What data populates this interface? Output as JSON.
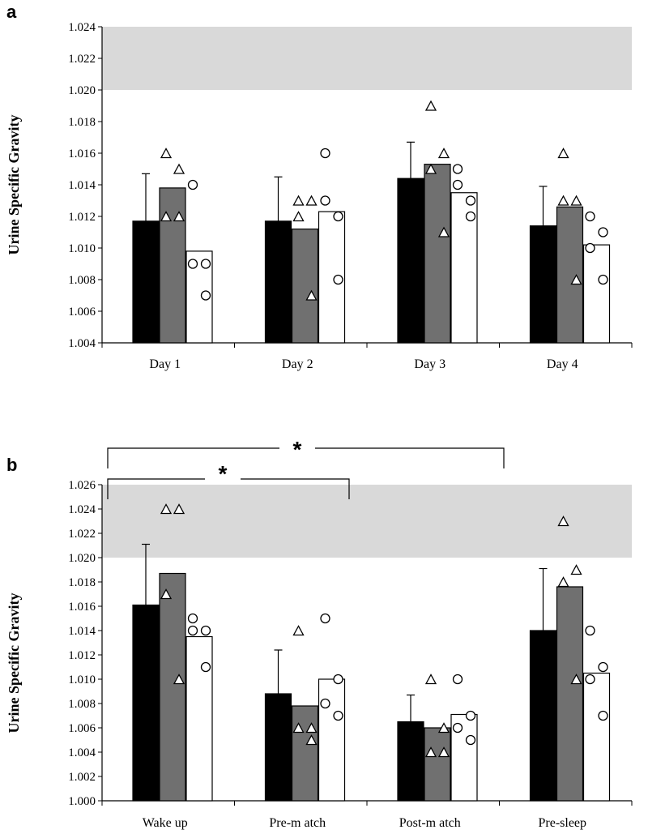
{
  "chart_data": [
    {
      "type": "bar",
      "panel_label": "a",
      "ylabel": "Urine Specific Gravity",
      "ylim": [
        1.004,
        1.024
      ],
      "yticks": [
        "1.004",
        "1.006",
        "1.008",
        "1.010",
        "1.012",
        "1.014",
        "1.016",
        "1.018",
        "1.020",
        "1.022",
        "1.024"
      ],
      "shaded_band": [
        1.02,
        1.024
      ],
      "categories": [
        "Day 1",
        "Day 2",
        "Day 3",
        "Day 4"
      ],
      "series": [
        {
          "name": "black",
          "color": "#000000",
          "values": [
            1.0117,
            1.0117,
            1.0144,
            1.0114
          ],
          "error": [
            1.0147,
            1.0145,
            1.0167,
            1.0139
          ],
          "points": []
        },
        {
          "name": "grey",
          "color": "#707070",
          "marker": "triangle",
          "values": [
            1.0138,
            1.0112,
            1.0153,
            1.0126
          ],
          "error": null,
          "points": [
            [
              1.016,
              1.012,
              1.012,
              1.015
            ],
            [
              1.012,
              1.013,
              1.013,
              1.007
            ],
            [
              1.019,
              1.016,
              1.015,
              1.011
            ],
            [
              1.016,
              1.013,
              1.013,
              1.008
            ]
          ]
        },
        {
          "name": "white",
          "color": "#ffffff",
          "marker": "circle",
          "values": [
            1.0098,
            1.0123,
            1.0135,
            1.0102
          ],
          "error": null,
          "points": [
            [
              1.014,
              1.009,
              1.009,
              1.007
            ],
            [
              1.016,
              1.012,
              1.013,
              1.008
            ],
            [
              1.015,
              1.013,
              1.014,
              1.012
            ],
            [
              1.012,
              1.011,
              1.01,
              1.008
            ]
          ]
        }
      ]
    },
    {
      "type": "bar",
      "panel_label": "b",
      "ylabel": "Urine Specific Gravity",
      "ylim": [
        1.0,
        1.026
      ],
      "yticks": [
        "1.000",
        "1.002",
        "1.004",
        "1.006",
        "1.008",
        "1.010",
        "1.012",
        "1.014",
        "1.016",
        "1.018",
        "1.020",
        "1.022",
        "1.024",
        "1.026"
      ],
      "shaded_band": [
        1.02,
        1.026
      ],
      "categories": [
        "Wake up",
        "Pre-m atch",
        "Post-m atch",
        "Pre-sleep"
      ],
      "series": [
        {
          "name": "black",
          "color": "#000000",
          "values": [
            1.0161,
            1.0088,
            1.0065,
            1.014
          ],
          "error": [
            1.0211,
            1.0124,
            1.0087,
            1.0191
          ],
          "points": []
        },
        {
          "name": "grey",
          "color": "#707070",
          "marker": "triangle",
          "values": [
            1.0187,
            1.0078,
            1.006,
            1.0176
          ],
          "error": null,
          "points": [
            [
              1.024,
              1.024,
              1.017,
              1.01
            ],
            [
              1.014,
              1.006,
              1.006,
              1.005
            ],
            [
              1.01,
              1.006,
              1.004,
              1.004
            ],
            [
              1.023,
              1.019,
              1.018,
              1.01
            ]
          ]
        },
        {
          "name": "white",
          "color": "#ffffff",
          "marker": "circle",
          "values": [
            1.0135,
            1.01,
            1.0071,
            1.0105
          ],
          "error": null,
          "points": [
            [
              1.015,
              1.014,
              1.014,
              1.011
            ],
            [
              1.015,
              1.01,
              1.008,
              1.007
            ],
            [
              1.01,
              1.007,
              1.006,
              1.005
            ],
            [
              1.014,
              1.011,
              1.01,
              1.007
            ]
          ]
        }
      ],
      "significance": [
        {
          "label": "*",
          "from": "Wake up",
          "to": "Post-m atch"
        },
        {
          "label": "*",
          "from": "Wake up",
          "to": "Pre-m atch"
        }
      ]
    }
  ]
}
